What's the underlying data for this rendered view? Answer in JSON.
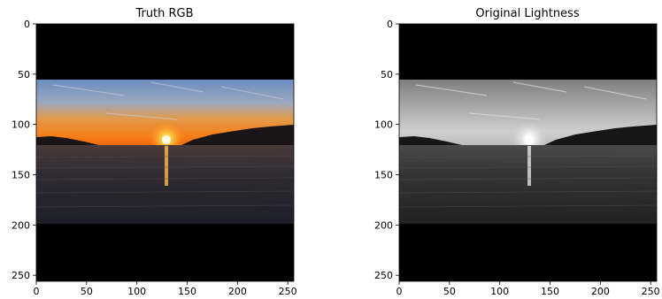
{
  "chart_data": [
    {
      "type": "image",
      "title": "Truth RGB",
      "xlim": [
        0,
        256
      ],
      "ylim": [
        256,
        0
      ],
      "x_ticks": [
        0,
        50,
        100,
        150,
        200,
        250
      ],
      "y_ticks": [
        0,
        50,
        100,
        150,
        200,
        250
      ],
      "content_rows": [
        56,
        199
      ],
      "colormap": "rgb",
      "grid": false,
      "colors": {
        "sky_top": "#6f8fc0",
        "sky_glow": "#f28a1c",
        "sun": "#fff3b0",
        "water": "#2a2631",
        "border": "#000000"
      }
    },
    {
      "type": "image",
      "title": "Original Lightness",
      "xlim": [
        0,
        256
      ],
      "ylim": [
        256,
        0
      ],
      "x_ticks": [
        0,
        50,
        100,
        150,
        200,
        250
      ],
      "y_ticks": [
        0,
        50,
        100,
        150,
        200,
        250
      ],
      "content_rows": [
        56,
        199
      ],
      "colormap": "gray",
      "grid": false,
      "colors": {
        "sky_top": "#8c8c8c",
        "sky_glow": "#c9c9c9",
        "sun": "#ffffff",
        "water": "#2c2c2c",
        "border": "#000000"
      }
    }
  ]
}
